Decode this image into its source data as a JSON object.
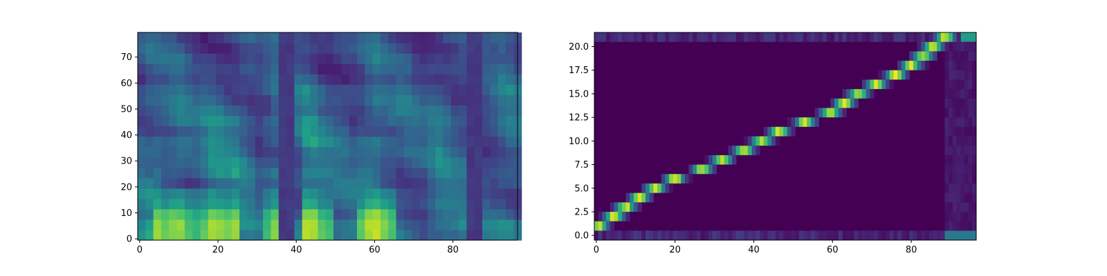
{
  "chart_data": [
    {
      "type": "heatmap",
      "title": "",
      "xlabel": "",
      "ylabel": "",
      "colormap": "viridis",
      "grid": false,
      "legend": "none",
      "xlim": [
        -0.5,
        96.5
      ],
      "ylim": [
        -0.5,
        79.5
      ],
      "n_frames": 97,
      "n_bins": 80,
      "xticks": [
        0,
        20,
        40,
        60,
        80
      ],
      "yticks": [
        0,
        10,
        20,
        30,
        40,
        50,
        60,
        70
      ],
      "xtick_labels": [
        "0",
        "20",
        "40",
        "60",
        "80"
      ],
      "ytick_labels": [
        "0",
        "10",
        "20",
        "30",
        "40",
        "50",
        "60",
        "70"
      ],
      "silence_frames": [
        [
          36,
          39
        ],
        [
          84,
          87
        ]
      ],
      "voiced_segments": [
        [
          4,
          25
        ],
        [
          31,
          36
        ],
        [
          42,
          49
        ],
        [
          56,
          66
        ]
      ]
    },
    {
      "type": "heatmap",
      "title": "",
      "xlabel": "",
      "ylabel": "",
      "colormap": "viridis",
      "grid": false,
      "legend": "none",
      "xlim": [
        -0.5,
        96.5
      ],
      "ylim": [
        -0.5,
        21.5
      ],
      "n_cols": 97,
      "n_rows": 22,
      "xticks": [
        0,
        20,
        40,
        60,
        80
      ],
      "yticks": [
        0,
        2.5,
        5,
        7.5,
        10,
        12.5,
        15,
        17.5,
        20
      ],
      "xtick_labels": [
        "0",
        "20",
        "40",
        "60",
        "80"
      ],
      "ytick_labels": [
        "0.0",
        "2.5",
        "5.0",
        "7.5",
        "10.0",
        "12.5",
        "15.0",
        "17.5",
        "20.0"
      ],
      "alignment_path": [
        {
          "row": 1,
          "x": 0.5
        },
        {
          "row": 2,
          "x": 4.5
        },
        {
          "row": 3,
          "x": 7.5
        },
        {
          "row": 4,
          "x": 11
        },
        {
          "row": 5,
          "x": 15
        },
        {
          "row": 6,
          "x": 20
        },
        {
          "row": 7,
          "x": 27
        },
        {
          "row": 8,
          "x": 32
        },
        {
          "row": 9,
          "x": 37.5
        },
        {
          "row": 10,
          "x": 42
        },
        {
          "row": 11,
          "x": 46.5
        },
        {
          "row": 12,
          "x": 53
        },
        {
          "row": 13,
          "x": 59.5
        },
        {
          "row": 14,
          "x": 63
        },
        {
          "row": 15,
          "x": 66.5
        },
        {
          "row": 16,
          "x": 71
        },
        {
          "row": 17,
          "x": 76
        },
        {
          "row": 18,
          "x": 80
        },
        {
          "row": 19,
          "x": 83
        },
        {
          "row": 20,
          "x": 85.5
        },
        {
          "row": 21,
          "x": 88.5
        }
      ]
    }
  ]
}
